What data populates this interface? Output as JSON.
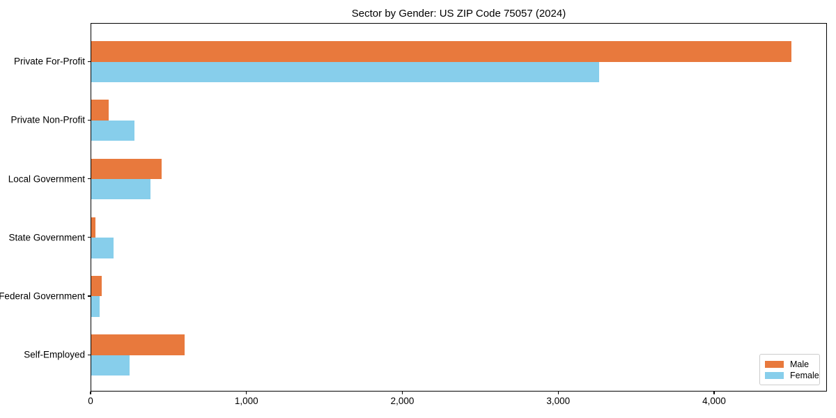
{
  "title": "Sector by Gender: US ZIP Code 75057 (2024)",
  "chart_data": {
    "type": "bar",
    "orientation": "horizontal",
    "title": "Sector by Gender: US ZIP Code 75057 (2024)",
    "categories": [
      "Private For-Profit",
      "Private Non-Profit",
      "Local Government",
      "State Government",
      "Federal Government",
      "Self-Employed"
    ],
    "series": [
      {
        "name": "Male",
        "color": "#e8793d",
        "values": [
          4490,
          110,
          450,
          25,
          65,
          600
        ]
      },
      {
        "name": "Female",
        "color": "#87ceeb",
        "values": [
          3260,
          275,
          380,
          145,
          55,
          245
        ]
      }
    ],
    "xlabel": "",
    "ylabel": "",
    "xlim": [
      0,
      4724
    ],
    "x_ticks": [
      0,
      1000,
      2000,
      3000,
      4000
    ],
    "x_tick_labels": [
      "0",
      "1,000",
      "2,000",
      "3,000",
      "4,000"
    ],
    "grid": false,
    "legend_position": "lower right",
    "frame_color": "#000000",
    "background_color": "#ffffff"
  }
}
